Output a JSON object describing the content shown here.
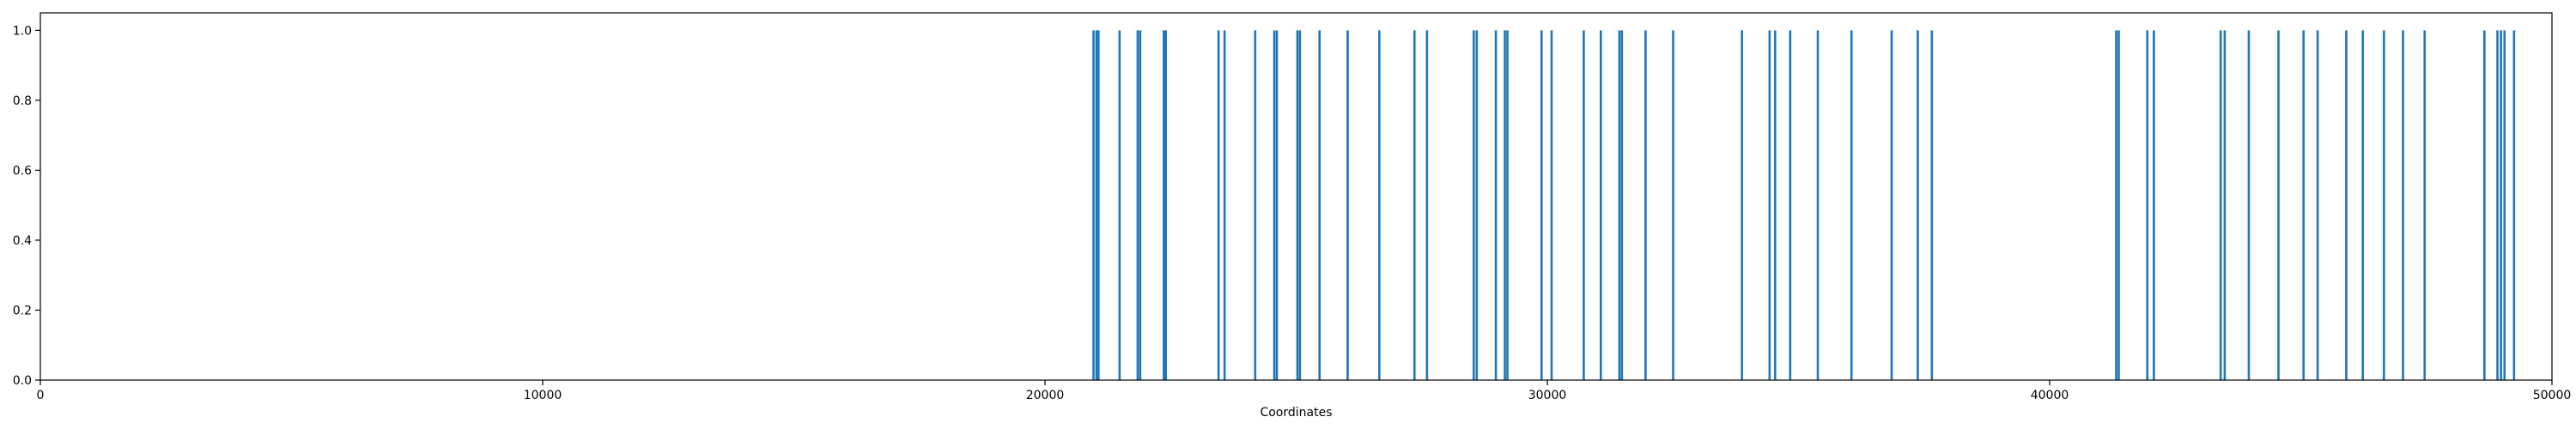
{
  "chart_data": {
    "type": "bar",
    "title": "",
    "xlabel": "Coordinates",
    "ylabel": "",
    "xlim": [
      0,
      50000
    ],
    "ylim": [
      0.0,
      1.05
    ],
    "grid": false,
    "color": "#1f77b4",
    "x_ticks": [
      "0",
      "10000",
      "20000",
      "30000",
      "40000",
      "50000"
    ],
    "y_ticks": [
      "0.0",
      "0.2",
      "0.4",
      "0.6",
      "0.8",
      "1.0"
    ],
    "x_tick_values": [
      0,
      10000,
      20000,
      30000,
      40000,
      50000
    ],
    "y_tick_values": [
      0.0,
      0.2,
      0.4,
      0.6,
      0.8,
      1.0
    ],
    "series": [
      {
        "x": [
          20960,
          21020,
          21060,
          21480,
          21840,
          21890,
          22360,
          22400,
          23450,
          23570,
          24180,
          24560,
          24610,
          25020,
          25070,
          25460,
          26020,
          26650,
          27350,
          27600,
          28530,
          28590,
          28970,
          29150,
          29200,
          29880,
          30080,
          30720,
          31060,
          31430,
          31480,
          31950,
          32500,
          33870,
          34420,
          34530,
          34830,
          35380,
          36050,
          36850,
          37370,
          37650,
          41320,
          41370,
          41940,
          42070,
          43400,
          43480,
          43960,
          44550,
          45050,
          45330,
          45900,
          46230,
          46650,
          47030,
          47460,
          48650,
          48910,
          48980,
          49050,
          49240
        ],
        "values": [
          1,
          1,
          1,
          1,
          1,
          1,
          1,
          1,
          1,
          1,
          1,
          1,
          1,
          1,
          1,
          1,
          1,
          1,
          1,
          1,
          1,
          1,
          1,
          1,
          1,
          1,
          1,
          1,
          1,
          1,
          1,
          1,
          1,
          1,
          1,
          1,
          1,
          1,
          1,
          1,
          1,
          1,
          1,
          1,
          1,
          1,
          1,
          1,
          1,
          1,
          1,
          1,
          1,
          1,
          1,
          1,
          1,
          1,
          1,
          1,
          1,
          1
        ]
      }
    ]
  }
}
